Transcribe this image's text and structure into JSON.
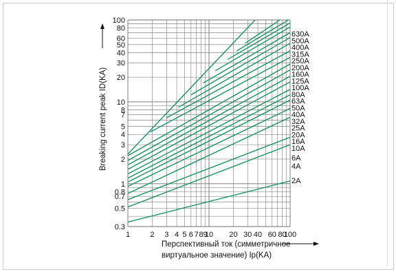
{
  "chart_data": {
    "type": "line",
    "x_scale": "log",
    "y_scale": "log",
    "xlim": [
      1,
      100
    ],
    "ylim": [
      0.3,
      100
    ],
    "grid": true,
    "ylabel": "Breaking current peak ID(KA)",
    "xlabel_line1": "Перспективный ток (симметричное",
    "xlabel_line2": "виртуальное значение) Ip(KA)",
    "x_ticks": [
      {
        "value": 1,
        "label": "1"
      },
      {
        "value": 2,
        "label": "2"
      },
      {
        "value": 3,
        "label": "3"
      },
      {
        "value": 4,
        "label": "4"
      },
      {
        "value": 5,
        "label": "5"
      },
      {
        "value": 6,
        "label": "6"
      },
      {
        "value": 7,
        "label": "7"
      },
      {
        "value": 8,
        "label": "8"
      },
      {
        "value": 9,
        "label": "9"
      },
      {
        "value": 10,
        "label": "10"
      },
      {
        "value": 20,
        "label": "20"
      },
      {
        "value": 30,
        "label": "30"
      },
      {
        "value": 40,
        "label": "40"
      },
      {
        "value": 60,
        "label": "60"
      },
      {
        "value": 80,
        "label": "80"
      },
      {
        "value": 100,
        "label": "100"
      }
    ],
    "y_ticks": [
      {
        "value": 0.3,
        "label": "0.3"
      },
      {
        "value": 0.5,
        "label": "0.5"
      },
      {
        "value": 0.7,
        "label": "0.7"
      },
      {
        "value": 0.8,
        "label": "0.8"
      },
      {
        "value": 1,
        "label": "1"
      },
      {
        "value": 2,
        "label": "2"
      },
      {
        "value": 3,
        "label": "3"
      },
      {
        "value": 4,
        "label": "4"
      },
      {
        "value": 5,
        "label": "5"
      },
      {
        "value": 7,
        "label": "7"
      },
      {
        "value": 8,
        "label": "8"
      },
      {
        "value": 10,
        "label": "10"
      },
      {
        "value": 20,
        "label": "20"
      },
      {
        "value": 30,
        "label": "30"
      },
      {
        "value": 40,
        "label": "40"
      },
      {
        "value": 50,
        "label": "50"
      },
      {
        "value": 60,
        "label": "60"
      },
      {
        "value": 80,
        "label": "80"
      },
      {
        "value": 100,
        "label": "100"
      }
    ],
    "reference_line": {
      "points": [
        [
          1,
          2.3
        ],
        [
          37,
          100
        ]
      ]
    },
    "series": [
      {
        "name": "2A",
        "points": [
          [
            1,
            0.34
          ],
          [
            100,
            1.08
          ]
        ]
      },
      {
        "name": "4A",
        "points": [
          [
            1,
            0.52
          ],
          [
            100,
            3.0
          ]
        ]
      },
      {
        "name": "6A",
        "points": [
          [
            1,
            0.64
          ],
          [
            100,
            3.7
          ]
        ]
      },
      {
        "name": "10A",
        "points": [
          [
            1,
            0.76
          ],
          [
            100,
            6.5
          ]
        ]
      },
      {
        "name": "16A",
        "points": [
          [
            1,
            0.93
          ],
          [
            100,
            8.3
          ]
        ]
      },
      {
        "name": "20A",
        "points": [
          [
            1,
            1.05
          ],
          [
            100,
            10.5
          ]
        ]
      },
      {
        "name": "25A",
        "points": [
          [
            1,
            1.17
          ],
          [
            100,
            12.2
          ]
        ]
      },
      {
        "name": "32A",
        "points": [
          [
            1,
            1.32
          ],
          [
            100,
            14.2
          ]
        ]
      },
      {
        "name": "40A",
        "points": [
          [
            1,
            1.5
          ],
          [
            100,
            17.5
          ]
        ]
      },
      {
        "name": "50A",
        "points": [
          [
            1,
            1.7
          ],
          [
            100,
            20.5
          ]
        ]
      },
      {
        "name": "63A",
        "points": [
          [
            1,
            1.92
          ],
          [
            100,
            24.5
          ]
        ]
      },
      {
        "name": "80A",
        "points": [
          [
            1,
            2.2
          ],
          [
            100,
            29
          ]
        ]
      },
      {
        "name": "100A",
        "points": [
          [
            1.9,
            4.3
          ],
          [
            100,
            35
          ]
        ]
      },
      {
        "name": "125A",
        "points": [
          [
            3,
            6.4
          ],
          [
            100,
            42
          ]
        ]
      },
      {
        "name": "160A",
        "points": [
          [
            4.2,
            8.6
          ],
          [
            100,
            52
          ]
        ]
      },
      {
        "name": "200A",
        "points": [
          [
            6,
            12.2
          ],
          [
            100,
            61
          ]
        ]
      },
      {
        "name": "250A",
        "points": [
          [
            8.5,
            17
          ],
          [
            100,
            70
          ]
        ]
      },
      {
        "name": "315A",
        "points": [
          [
            12,
            24
          ],
          [
            100,
            82
          ]
        ]
      },
      {
        "name": "400A",
        "points": [
          [
            17,
            33
          ],
          [
            100,
            92
          ]
        ]
      },
      {
        "name": "500A",
        "points": [
          [
            22,
            42
          ],
          [
            100,
            103
          ]
        ]
      },
      {
        "name": "630A",
        "points": [
          [
            28,
            52
          ],
          [
            100,
            122
          ]
        ]
      }
    ]
  }
}
